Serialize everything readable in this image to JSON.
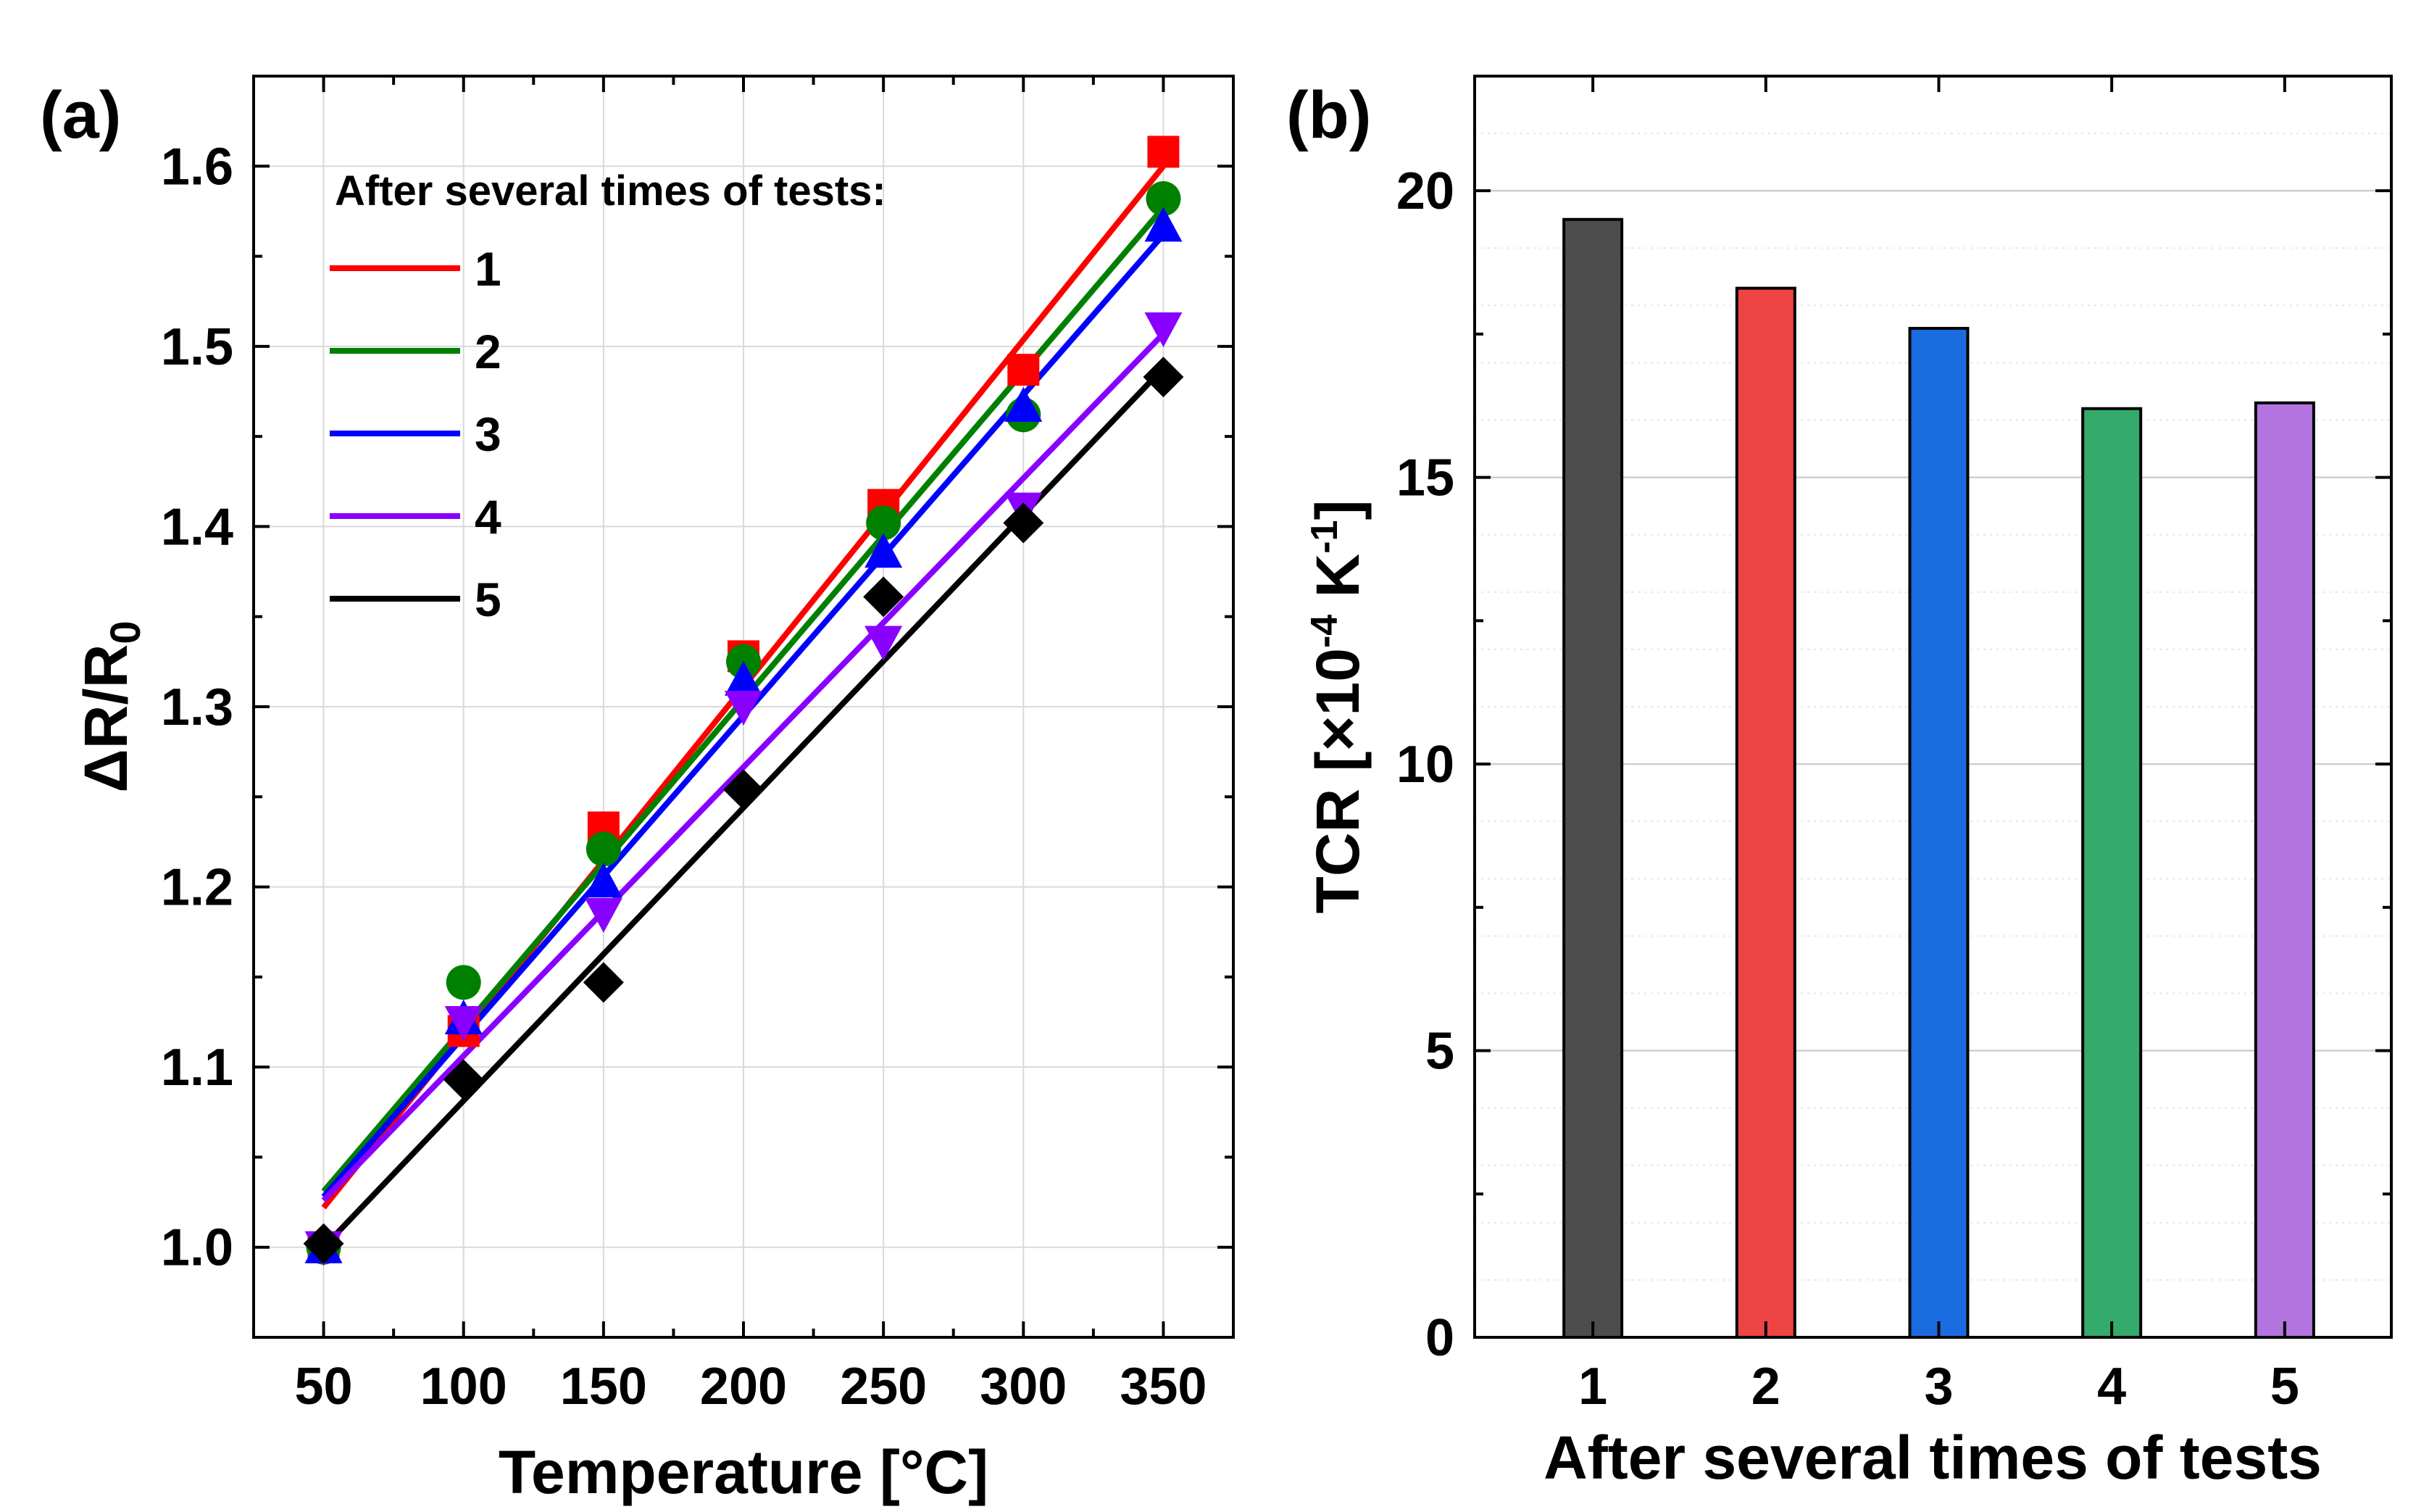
{
  "panel_a": {
    "label": "(a)",
    "legend_title": "After several times of tests:",
    "xlabel": "Temperature [°C]",
    "ylabel_main": "ΔR/R",
    "ylabel_sub": "0"
  },
  "panel_b": {
    "label": "(b)",
    "xlabel": "After several times of tests",
    "ylabel_pre": "TCR [×10",
    "ylabel_exp1": "-4",
    "ylabel_mid": " K",
    "ylabel_exp2": "-1",
    "ylabel_post": "]"
  },
  "chart_data": [
    {
      "type": "scatter",
      "panel": "a",
      "title": "",
      "xlabel": "Temperature [°C]",
      "ylabel": "ΔR/R0",
      "xlim": [
        25,
        375
      ],
      "ylim": [
        0.95,
        1.65
      ],
      "xticks": [
        50,
        100,
        150,
        200,
        250,
        300,
        350
      ],
      "yticks": [
        1.0,
        1.1,
        1.2,
        1.3,
        1.4,
        1.5,
        1.6
      ],
      "grid": true,
      "legend_title": "After several times of tests:",
      "legend_position": "top-left",
      "x": [
        50,
        100,
        150,
        200,
        250,
        300,
        350
      ],
      "series": [
        {
          "name": "1",
          "color": "#ff0000",
          "marker": "square",
          "values": [
            1.0,
            1.12,
            1.233,
            1.328,
            1.412,
            1.487,
            1.608
          ],
          "fit": [
            1.022,
            1.6
          ]
        },
        {
          "name": "2",
          "color": "#008000",
          "marker": "circle",
          "values": [
            1.0,
            1.147,
            1.221,
            1.325,
            1.402,
            1.462,
            1.582
          ],
          "fit": [
            1.031,
            1.577
          ]
        },
        {
          "name": "3",
          "color": "#0000ff",
          "marker": "triangle-up",
          "values": [
            1.0,
            1.127,
            1.203,
            1.315,
            1.386,
            1.467,
            1.567
          ],
          "fit": [
            1.028,
            1.562
          ]
        },
        {
          "name": "4",
          "color": "#8a00ff",
          "marker": "triangle-down",
          "values": [
            1.0,
            1.125,
            1.185,
            1.3,
            1.336,
            1.41,
            1.51
          ],
          "fit": [
            1.026,
            1.507
          ]
        },
        {
          "name": "5",
          "color": "#000000",
          "marker": "diamond",
          "values": [
            1.002,
            1.093,
            1.147,
            1.254,
            1.361,
            1.402,
            1.483
          ],
          "fit": [
            1.0,
            1.488
          ]
        }
      ]
    },
    {
      "type": "bar",
      "panel": "b",
      "title": "",
      "xlabel": "After several times of tests",
      "ylabel": "TCR [×10^-4 K^-1]",
      "categories": [
        "1",
        "2",
        "3",
        "4",
        "5"
      ],
      "values": [
        19.5,
        18.3,
        17.6,
        16.2,
        16.3
      ],
      "colors": [
        "#4d4d4d",
        "#ef4444",
        "#1a6be0",
        "#34aa6b",
        "#b374e0"
      ],
      "ylim": [
        0,
        22
      ],
      "yticks": [
        0,
        5,
        10,
        15,
        20
      ],
      "grid": true
    }
  ]
}
